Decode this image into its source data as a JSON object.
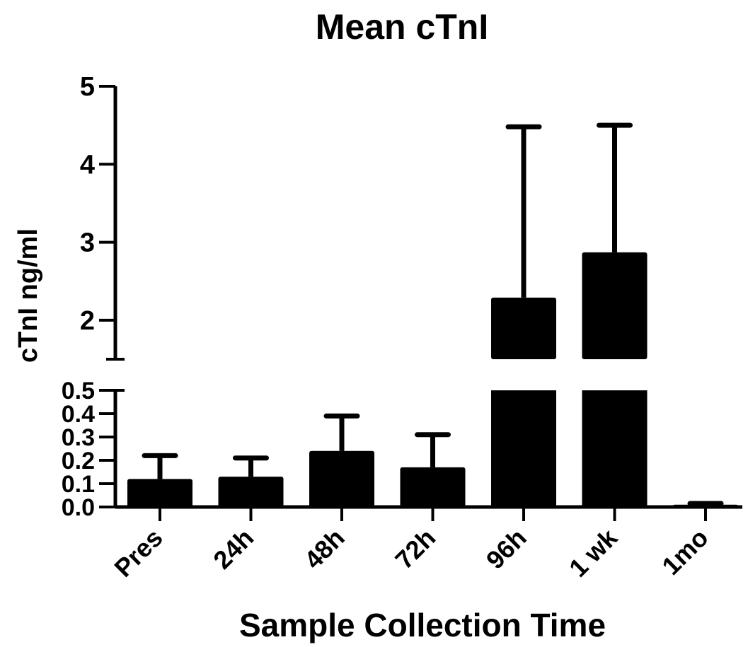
{
  "chart_data": {
    "type": "bar",
    "title": "Mean cTnI",
    "xlabel": "Sample Collection Time",
    "ylabel": "cTnI ng/ml",
    "categories": [
      "Pres",
      "24h",
      "48h",
      "72h",
      "96h",
      "1 wk",
      "1mo"
    ],
    "values": [
      0.12,
      0.13,
      0.24,
      0.17,
      2.29,
      2.87,
      0.01
    ],
    "error_upper": [
      0.22,
      0.21,
      0.39,
      0.31,
      4.48,
      4.5,
      0.015
    ],
    "y_axis_break": true,
    "ylim_lower": [
      0,
      0.5
    ],
    "ylim_upper": [
      1.5,
      5
    ],
    "yticks_lower": [
      "0.0",
      "0.1",
      "0.2",
      "0.3",
      "0.4",
      "0.5"
    ],
    "yticks_upper": [
      "2",
      "3",
      "4",
      "5"
    ],
    "bar_color": "#000000",
    "grid": false,
    "legend": "none"
  }
}
